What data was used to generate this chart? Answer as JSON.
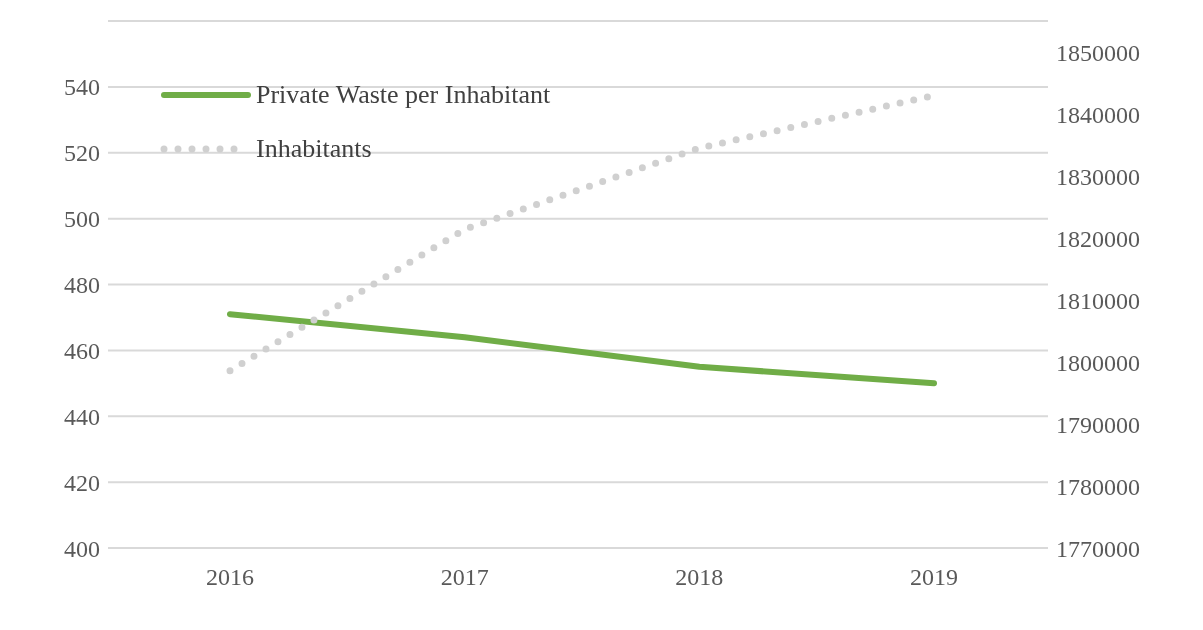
{
  "chart_data": {
    "type": "line",
    "categories": [
      "2016",
      "2017",
      "2018",
      "2019"
    ],
    "series": [
      {
        "name": "Private Waste per Inhabitant",
        "color": "#70ad47",
        "values": [
          471,
          464,
          455,
          450
        ],
        "line_style": "solid"
      },
      {
        "name": "Inhabitants",
        "color": "#d0d0d0",
        "values": [
          1798600,
          1821400,
          1834500,
          1843000
        ],
        "axis": "y2",
        "line_style": "dotted"
      }
    ],
    "ylim": [
      400,
      560
    ],
    "yticks": [
      400,
      420,
      440,
      460,
      480,
      500,
      520,
      540
    ],
    "y2lim": [
      1770000,
      1855000
    ],
    "y2ticks": [
      1770000,
      1780000,
      1790000,
      1800000,
      1810000,
      1820000,
      1830000,
      1840000,
      1850000
    ],
    "grid": "y",
    "legend": "top left",
    "marker": "none"
  }
}
